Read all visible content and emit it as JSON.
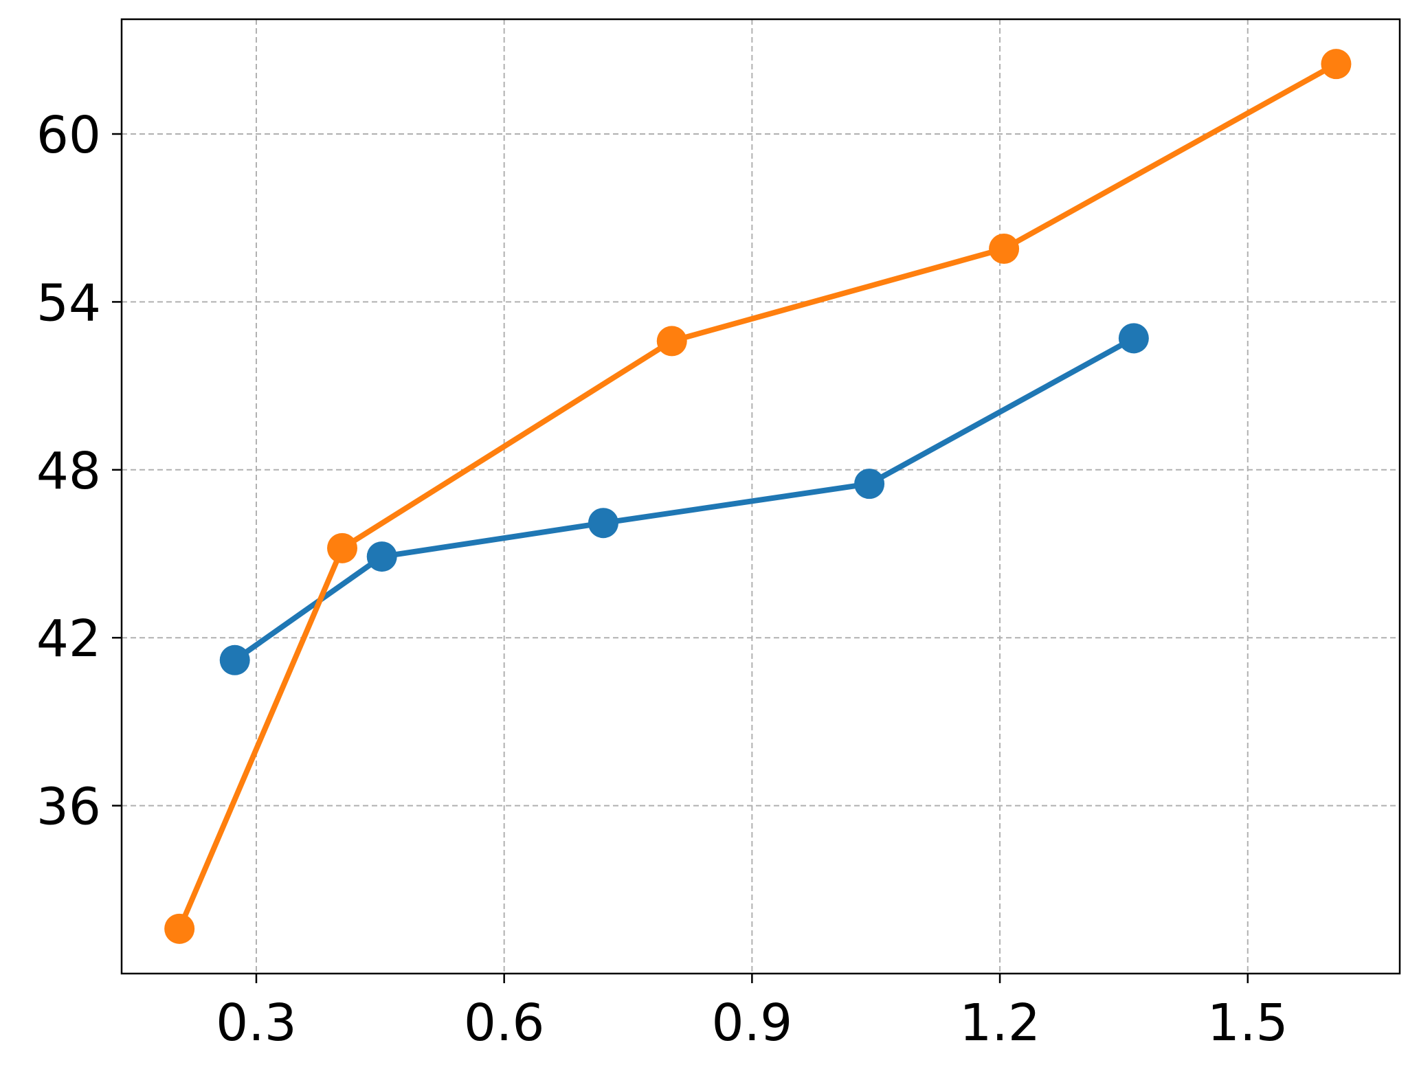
{
  "chart_data": {
    "type": "line",
    "title": "",
    "xlabel": "",
    "ylabel": "",
    "xlim": [
      0.137,
      1.684
    ],
    "ylim": [
      30.0,
      64.1
    ],
    "xticks": [
      0.3,
      0.6,
      0.9,
      1.2,
      1.5
    ],
    "xtick_labels": [
      "0.3",
      "0.6",
      "0.9",
      "1.2",
      "1.5"
    ],
    "yticks": [
      36,
      42,
      48,
      54,
      60
    ],
    "ytick_labels": [
      "36",
      "42",
      "48",
      "54",
      "60"
    ],
    "grid": true,
    "legend": "none",
    "series": [
      {
        "color": "#1f77b4",
        "marker": "circle",
        "x": [
          0.274,
          0.452,
          0.72,
          1.042,
          1.362
        ],
        "y": [
          41.2,
          44.9,
          46.1,
          47.5,
          52.7
        ]
      },
      {
        "color": "#ff7f0e",
        "marker": "circle",
        "x": [
          0.207,
          0.404,
          0.803,
          1.205,
          1.607
        ],
        "y": [
          31.6,
          45.2,
          52.6,
          55.9,
          62.5
        ]
      }
    ]
  }
}
